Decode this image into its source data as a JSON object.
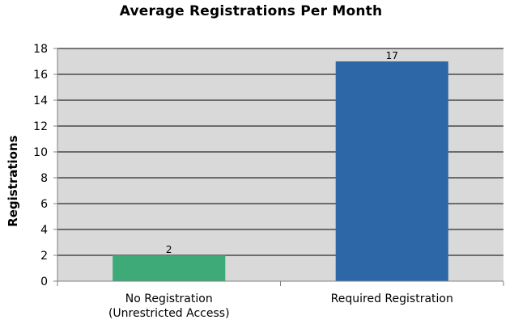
{
  "chart_data": {
    "type": "bar",
    "title": "Average Registrations Per Month",
    "xlabel": "",
    "ylabel": "Registrations",
    "ylim": [
      0,
      18
    ],
    "yticks": [
      0,
      2,
      4,
      6,
      8,
      10,
      12,
      14,
      16,
      18
    ],
    "grid": true,
    "legend": "none",
    "categories": [
      [
        "No Registration",
        "(Unrestricted Access)"
      ],
      [
        "Required Registration"
      ]
    ],
    "values": [
      2,
      17
    ],
    "data_labels": [
      "2",
      "17"
    ],
    "colors": [
      "#3daa78",
      "#2e67a8"
    ],
    "plot_background": "#d9d9d9",
    "gridline_color": "#000000"
  }
}
